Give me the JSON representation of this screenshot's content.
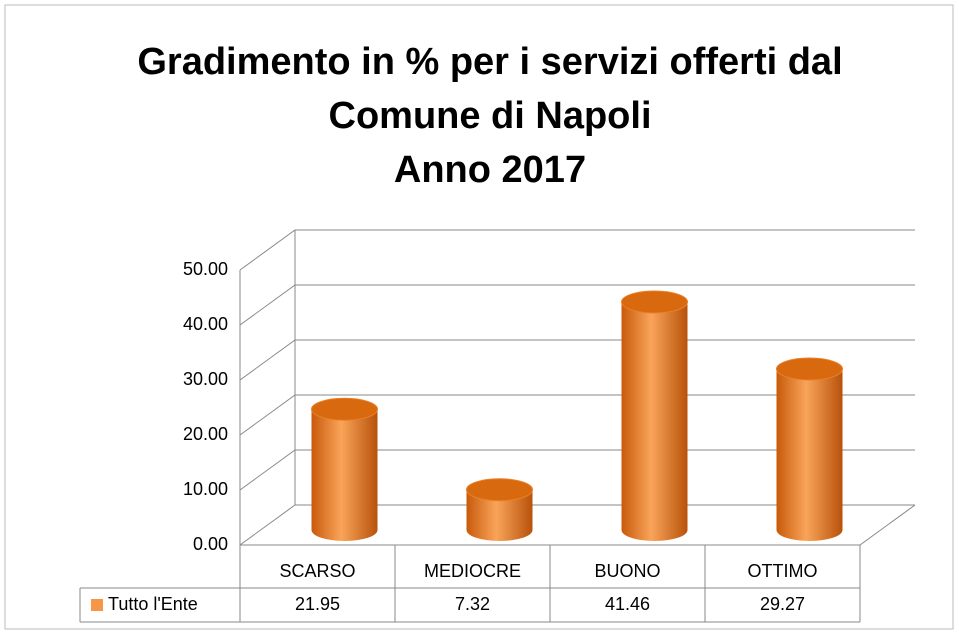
{
  "chart_data": {
    "type": "bar3d",
    "title": [
      "Gradimento in % per i servizi offerti dal",
      "Comune di Napoli",
      "Anno 2017"
    ],
    "categories": [
      "SCARSO",
      "MEDIOCRE",
      "BUONO",
      "OTTIMO"
    ],
    "series": [
      {
        "name": "Tutto l'Ente",
        "color": "#f79646",
        "values": [
          21.95,
          7.32,
          41.46,
          29.27
        ]
      }
    ],
    "ylim": [
      0,
      50
    ],
    "yticks": [
      {
        "value": 0,
        "label": "0.00"
      },
      {
        "value": 10,
        "label": "10.00"
      },
      {
        "value": 20,
        "label": "20.00"
      },
      {
        "value": 30,
        "label": "30.00"
      },
      {
        "value": 40,
        "label": "40.00"
      },
      {
        "value": 50,
        "label": "50.00"
      }
    ],
    "grid": true,
    "data_table": true
  }
}
